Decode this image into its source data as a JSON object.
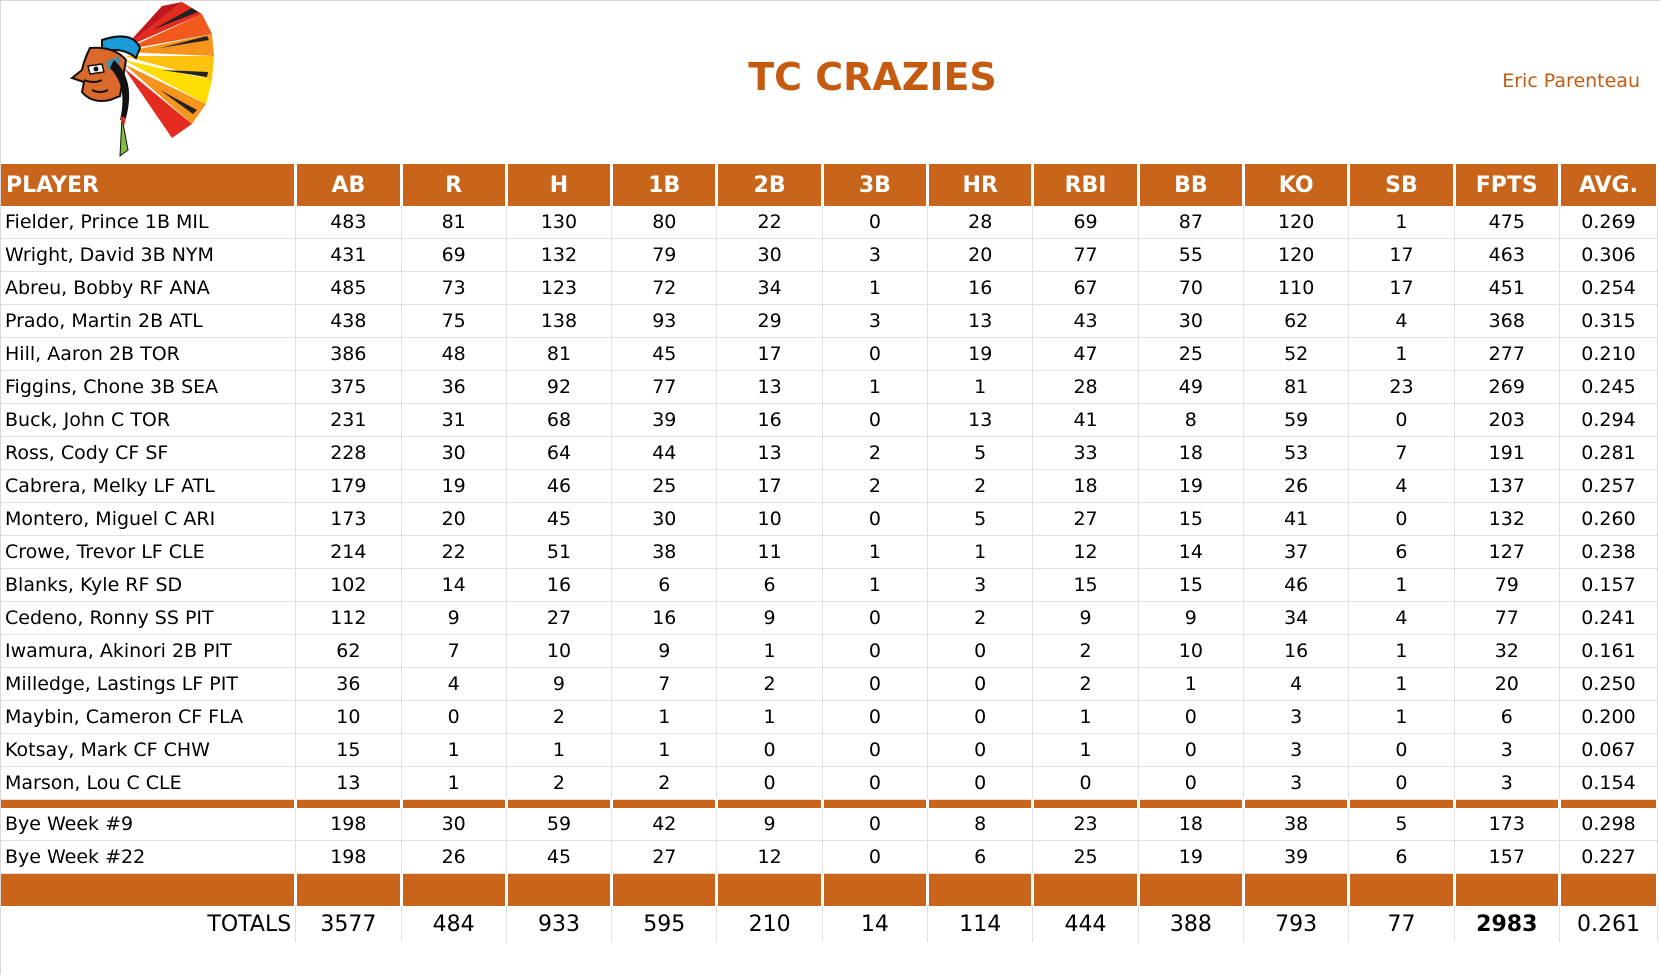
{
  "team": {
    "name": "TC CRAZIES",
    "owner": "Eric Parenteau",
    "logo_icon": "chief-headdress-logo-icon"
  },
  "colors": {
    "accent": "#c55a11",
    "header_bg": "#c8651a"
  },
  "columns": [
    "PLAYER",
    "AB",
    "R",
    "H",
    "1B",
    "2B",
    "3B",
    "HR",
    "RBI",
    "BB",
    "KO",
    "SB",
    "FPTS",
    "AVG."
  ],
  "players": [
    [
      "Fielder, Prince 1B MIL",
      "483",
      "81",
      "130",
      "80",
      "22",
      "0",
      "28",
      "69",
      "87",
      "120",
      "1",
      "475",
      "0.269"
    ],
    [
      "Wright, David 3B NYM",
      "431",
      "69",
      "132",
      "79",
      "30",
      "3",
      "20",
      "77",
      "55",
      "120",
      "17",
      "463",
      "0.306"
    ],
    [
      "Abreu, Bobby RF ANA",
      "485",
      "73",
      "123",
      "72",
      "34",
      "1",
      "16",
      "67",
      "70",
      "110",
      "17",
      "451",
      "0.254"
    ],
    [
      "Prado, Martin 2B ATL",
      "438",
      "75",
      "138",
      "93",
      "29",
      "3",
      "13",
      "43",
      "30",
      "62",
      "4",
      "368",
      "0.315"
    ],
    [
      "Hill, Aaron 2B TOR",
      "386",
      "48",
      "81",
      "45",
      "17",
      "0",
      "19",
      "47",
      "25",
      "52",
      "1",
      "277",
      "0.210"
    ],
    [
      "Figgins, Chone 3B SEA",
      "375",
      "36",
      "92",
      "77",
      "13",
      "1",
      "1",
      "28",
      "49",
      "81",
      "23",
      "269",
      "0.245"
    ],
    [
      "Buck, John C TOR",
      "231",
      "31",
      "68",
      "39",
      "16",
      "0",
      "13",
      "41",
      "8",
      "59",
      "0",
      "203",
      "0.294"
    ],
    [
      "Ross, Cody CF SF",
      "228",
      "30",
      "64",
      "44",
      "13",
      "2",
      "5",
      "33",
      "18",
      "53",
      "7",
      "191",
      "0.281"
    ],
    [
      "Cabrera, Melky LF ATL",
      "179",
      "19",
      "46",
      "25",
      "17",
      "2",
      "2",
      "18",
      "19",
      "26",
      "4",
      "137",
      "0.257"
    ],
    [
      "Montero, Miguel C ARI",
      "173",
      "20",
      "45",
      "30",
      "10",
      "0",
      "5",
      "27",
      "15",
      "41",
      "0",
      "132",
      "0.260"
    ],
    [
      "Crowe, Trevor LF CLE",
      "214",
      "22",
      "51",
      "38",
      "11",
      "1",
      "1",
      "12",
      "14",
      "37",
      "6",
      "127",
      "0.238"
    ],
    [
      "Blanks, Kyle RF SD",
      "102",
      "14",
      "16",
      "6",
      "6",
      "1",
      "3",
      "15",
      "15",
      "46",
      "1",
      "79",
      "0.157"
    ],
    [
      "Cedeno, Ronny SS PIT",
      "112",
      "9",
      "27",
      "16",
      "9",
      "0",
      "2",
      "9",
      "9",
      "34",
      "4",
      "77",
      "0.241"
    ],
    [
      "Iwamura, Akinori 2B PIT",
      "62",
      "7",
      "10",
      "9",
      "1",
      "0",
      "0",
      "2",
      "10",
      "16",
      "1",
      "32",
      "0.161"
    ],
    [
      "Milledge, Lastings LF PIT",
      "36",
      "4",
      "9",
      "7",
      "2",
      "0",
      "0",
      "2",
      "1",
      "4",
      "1",
      "20",
      "0.250"
    ],
    [
      "Maybin, Cameron CF FLA",
      "10",
      "0",
      "2",
      "1",
      "1",
      "0",
      "0",
      "1",
      "0",
      "3",
      "1",
      "6",
      "0.200"
    ],
    [
      "Kotsay, Mark CF CHW",
      "15",
      "1",
      "1",
      "1",
      "0",
      "0",
      "0",
      "1",
      "0",
      "3",
      "0",
      "3",
      "0.067"
    ],
    [
      "Marson, Lou C CLE",
      "13",
      "1",
      "2",
      "2",
      "0",
      "0",
      "0",
      "0",
      "0",
      "3",
      "0",
      "3",
      "0.154"
    ]
  ],
  "bye_weeks": [
    [
      "Bye Week #9",
      "198",
      "30",
      "59",
      "42",
      "9",
      "0",
      "8",
      "23",
      "18",
      "38",
      "5",
      "173",
      "0.298"
    ],
    [
      "Bye Week #22",
      "198",
      "26",
      "45",
      "27",
      "12",
      "0",
      "6",
      "25",
      "19",
      "39",
      "6",
      "157",
      "0.227"
    ]
  ],
  "totals": [
    "TOTALS",
    "3577",
    "484",
    "933",
    "595",
    "210",
    "14",
    "114",
    "444",
    "388",
    "793",
    "77",
    "2983",
    "0.261"
  ]
}
